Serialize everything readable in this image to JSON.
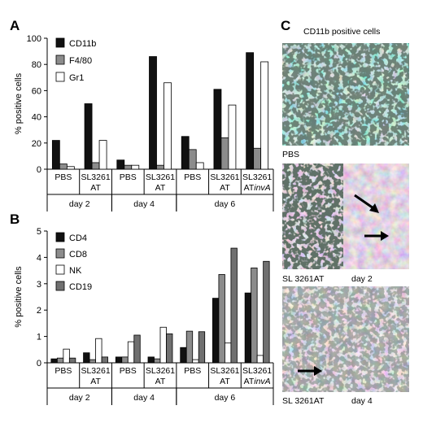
{
  "figure": {
    "panel_labels": [
      "A",
      "B",
      "C"
    ],
    "panel_c_title": "CD11b positive cells",
    "micrograph_labels": [
      {
        "text": "PBS",
        "day": ""
      },
      {
        "text": "SL 3261AT",
        "day": "day 2"
      },
      {
        "text": "SL 3261AT",
        "day": "day 4"
      }
    ],
    "colors": {
      "black": "#111111",
      "gray": "#8c8c8c",
      "dark_gray": "#707070",
      "white": "#ffffff",
      "tissue_teal": "#7fb8b0",
      "tissue_pink": "#c9a0c8"
    }
  },
  "chart_data": [
    {
      "type": "bar",
      "panel": "A",
      "ylabel": "% positive cells",
      "ylim": [
        0,
        100
      ],
      "yticks": [
        0,
        20,
        40,
        60,
        80,
        100
      ],
      "categories": [
        {
          "line1": "PBS",
          "line2": ""
        },
        {
          "line1": "SL3261",
          "line2": "AT"
        },
        {
          "line1": "PBS",
          "line2": ""
        },
        {
          "line1": "SL3261",
          "line2": "AT"
        },
        {
          "line1": "PBS",
          "line2": ""
        },
        {
          "line1": "SL3261",
          "line2": "AT"
        },
        {
          "line1": "SL3261",
          "line2": "AT",
          "line2_italic": "invA"
        }
      ],
      "day_groups": [
        {
          "label": "day 2",
          "span": [
            0,
            1
          ]
        },
        {
          "label": "day 4",
          "span": [
            2,
            3
          ]
        },
        {
          "label": "day 6",
          "span": [
            4,
            6
          ]
        }
      ],
      "series": [
        {
          "name": "CD11b",
          "color": "#111111",
          "values": [
            22,
            50,
            7,
            86,
            25,
            61,
            89
          ]
        },
        {
          "name": "F4/80",
          "color": "#8c8c8c",
          "values": [
            4,
            5,
            3,
            3,
            15,
            24,
            16
          ]
        },
        {
          "name": "Gr1",
          "color": "#ffffff",
          "values": [
            2,
            22,
            3,
            66,
            5,
            49,
            82
          ]
        }
      ]
    },
    {
      "type": "bar",
      "panel": "B",
      "ylabel": "% positive cells",
      "ylim": [
        0,
        5
      ],
      "yticks": [
        0,
        1,
        2,
        3,
        4,
        5
      ],
      "categories": [
        {
          "line1": "PBS",
          "line2": ""
        },
        {
          "line1": "SL3261",
          "line2": "AT"
        },
        {
          "line1": "PBS",
          "line2": ""
        },
        {
          "line1": "SL3261",
          "line2": "AT"
        },
        {
          "line1": "PBS",
          "line2": ""
        },
        {
          "line1": "SL3261",
          "line2": "AT"
        },
        {
          "line1": "SL3261",
          "line2": "AT",
          "line2_italic": "invA"
        }
      ],
      "day_groups": [
        {
          "label": "day 2",
          "span": [
            0,
            1
          ]
        },
        {
          "label": "day 4",
          "span": [
            2,
            3
          ]
        },
        {
          "label": "day 6",
          "span": [
            4,
            6
          ]
        }
      ],
      "series": [
        {
          "name": "CD4",
          "color": "#111111",
          "values": [
            0.15,
            0.38,
            0.22,
            0.22,
            0.58,
            2.45,
            2.65
          ]
        },
        {
          "name": "CD8",
          "color": "#8c8c8c",
          "values": [
            0.18,
            0.12,
            0.22,
            0.15,
            1.2,
            3.35,
            3.6
          ]
        },
        {
          "name": "NK",
          "color": "#ffffff",
          "values": [
            0.52,
            0.92,
            0.8,
            1.35,
            0.12,
            0.75,
            0.28
          ]
        },
        {
          "name": "CD19",
          "color": "#707070",
          "values": [
            0.18,
            0.22,
            1.05,
            1.1,
            1.18,
            4.35,
            3.85
          ]
        }
      ]
    }
  ]
}
